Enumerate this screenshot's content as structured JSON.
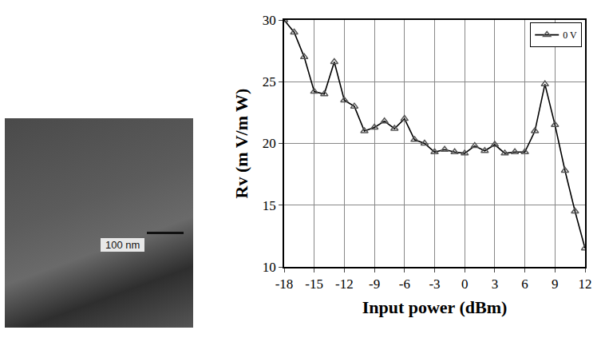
{
  "micrograph": {
    "scale_label": "100 nm"
  },
  "chart_data": {
    "type": "line",
    "x_label": "Input power (dBm)",
    "y_label": "Rv (m V/m W)",
    "x": [
      -18,
      -17,
      -16,
      -15,
      -14,
      -13,
      -12,
      -11,
      -10,
      -9,
      -8,
      -7,
      -6,
      -5,
      -4,
      -3,
      -2,
      -1,
      0,
      1,
      2,
      3,
      4,
      5,
      6,
      7,
      8,
      9,
      10,
      11,
      12
    ],
    "series": [
      {
        "name": "0 V",
        "color": "#000000",
        "marker": "triangle",
        "values": [
          30,
          29,
          27,
          24.2,
          24,
          26.6,
          23.5,
          23,
          21,
          21.3,
          21.8,
          21.2,
          22,
          20.3,
          20,
          19.3,
          19.5,
          19.3,
          19.2,
          19.8,
          19.4,
          19.9,
          19.2,
          19.3,
          19.3,
          21,
          24.8,
          21.5,
          17.8,
          14.5,
          11.5
        ]
      }
    ],
    "xlim": [
      -18,
      12
    ],
    "xticks": [
      -18,
      -15,
      -12,
      -9,
      -6,
      -3,
      0,
      3,
      6,
      9,
      12
    ],
    "ylim": [
      10,
      30
    ],
    "yticks": [
      10,
      15,
      20,
      25,
      30
    ],
    "grid": true,
    "legend": "top right"
  }
}
